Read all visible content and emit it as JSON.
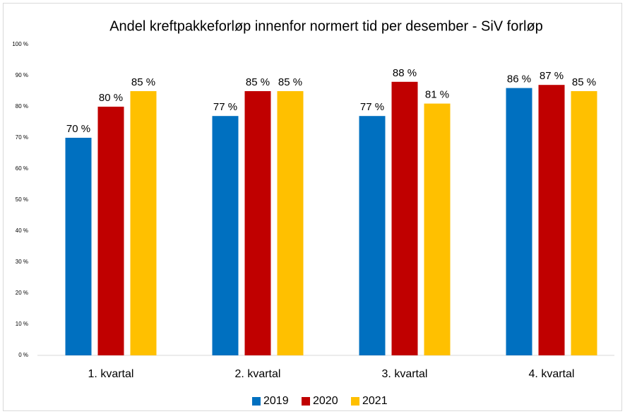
{
  "chart_data": {
    "type": "bar",
    "title": "Andel kreftpakkeforløp innenfor normert tid per desember - SiV forløp",
    "categories": [
      "1. kvartal",
      "2. kvartal",
      "3. kvartal",
      "4. kvartal"
    ],
    "series": [
      {
        "name": "2019",
        "color": "#0070c0",
        "values": [
          70,
          77,
          77,
          86
        ],
        "value_labels": [
          "70 %",
          "77 %",
          "77 %",
          "86 %"
        ]
      },
      {
        "name": "2020",
        "color": "#c00000",
        "values": [
          80,
          85,
          88,
          87
        ],
        "value_labels": [
          "80 %",
          "85 %",
          "88 %",
          "87 %"
        ]
      },
      {
        "name": "2021",
        "color": "#ffc000",
        "values": [
          85,
          85,
          81,
          85
        ],
        "value_labels": [
          "85 %",
          "85 %",
          "81 %",
          "85 %"
        ]
      }
    ],
    "ylim": [
      0,
      100
    ],
    "yticks": [
      {
        "value": 0,
        "label": "0 %"
      },
      {
        "value": 10,
        "label": "10 %"
      },
      {
        "value": 20,
        "label": "20 %"
      },
      {
        "value": 30,
        "label": "30 %"
      },
      {
        "value": 40,
        "label": "40 %"
      },
      {
        "value": 50,
        "label": "50 %"
      },
      {
        "value": 60,
        "label": "60 %"
      },
      {
        "value": 70,
        "label": "70 %"
      },
      {
        "value": 80,
        "label": "80 %"
      },
      {
        "value": 90,
        "label": "90 %"
      },
      {
        "value": 100,
        "label": "100 %"
      }
    ],
    "grid": false,
    "legend": "bottom"
  }
}
